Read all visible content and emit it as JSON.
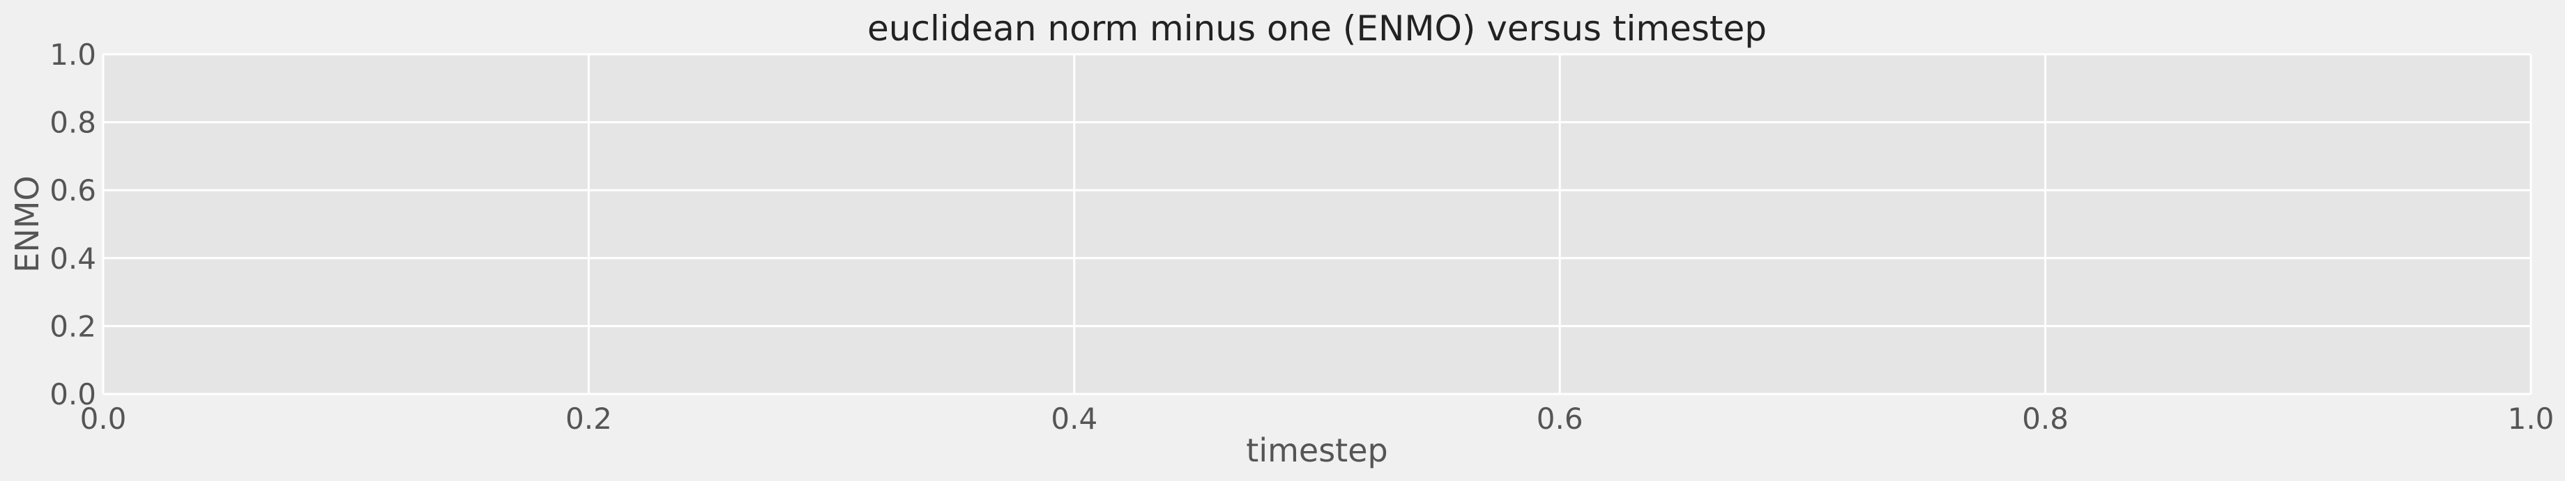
{
  "chart_data": {
    "type": "line",
    "title": "euclidean norm minus one (ENMO) versus timestep",
    "xlabel": "timestep",
    "ylabel": "ENMO",
    "xlim": [
      0.0,
      1.0
    ],
    "ylim": [
      0.0,
      1.0
    ],
    "x_ticks": [
      "0.0",
      "0.2",
      "0.4",
      "0.6",
      "0.8",
      "1.0"
    ],
    "y_ticks": [
      "0.0",
      "0.2",
      "0.4",
      "0.6",
      "0.8",
      "1.0"
    ],
    "grid": true,
    "series": [],
    "colors": {
      "figure_background": "#f0f0f0",
      "plot_background": "#e5e5e5",
      "grid": "#ffffff",
      "text": "#555555",
      "title": "#222222"
    }
  }
}
